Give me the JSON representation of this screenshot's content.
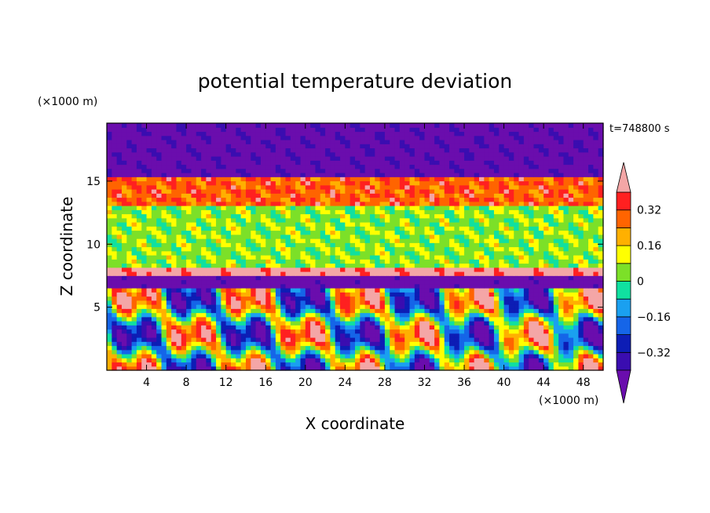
{
  "chart_data": {
    "type": "heatmap",
    "title": "potential temperature deviation",
    "xlabel": "X coordinate",
    "ylabel": "Z coordinate",
    "x_unit": "(×1000 m)",
    "y_unit": "(×1000 m)",
    "time_label": "t=748800 s",
    "xlim": [
      0,
      50
    ],
    "ylim": [
      0,
      19.6
    ],
    "x_ticks": [
      4,
      8,
      12,
      16,
      20,
      24,
      28,
      32,
      36,
      40,
      44,
      48
    ],
    "y_ticks": [
      5,
      10,
      15
    ],
    "grid": false,
    "legend": "colorbar-right",
    "colorbar": {
      "levels": [
        -0.4,
        -0.32,
        -0.24,
        -0.16,
        -0.08,
        0,
        0.08,
        0.16,
        0.24,
        0.32,
        0.4
      ],
      "tick_values": [
        -0.32,
        -0.16,
        0,
        0.16,
        0.32
      ],
      "tick_labels": [
        "−0.32",
        "−0.16",
        "0",
        "0.16",
        "0.32"
      ],
      "colors": [
        "#6a0dad",
        "#3a0db0",
        "#0d1db5",
        "#1565e8",
        "#1aa0f0",
        "#10e0a0",
        "#7ce028",
        "#ffff00",
        "#ffb000",
        "#ff6400",
        "#ff2020",
        "#f4a6a6"
      ],
      "extend": "both"
    },
    "field_bands": [
      {
        "z": [
          0,
          6.5
        ],
        "pattern": "convective"
      },
      {
        "z": [
          6.5,
          7.5
        ],
        "value": -0.5
      },
      {
        "z": [
          7.5,
          8.2
        ],
        "value": 0.45
      },
      {
        "z": [
          8.2,
          13
        ],
        "value": 0.05
      },
      {
        "z": [
          13,
          15.5
        ],
        "value": 0.3
      },
      {
        "z": [
          15.5,
          19.6
        ],
        "value": -0.45
      }
    ]
  }
}
